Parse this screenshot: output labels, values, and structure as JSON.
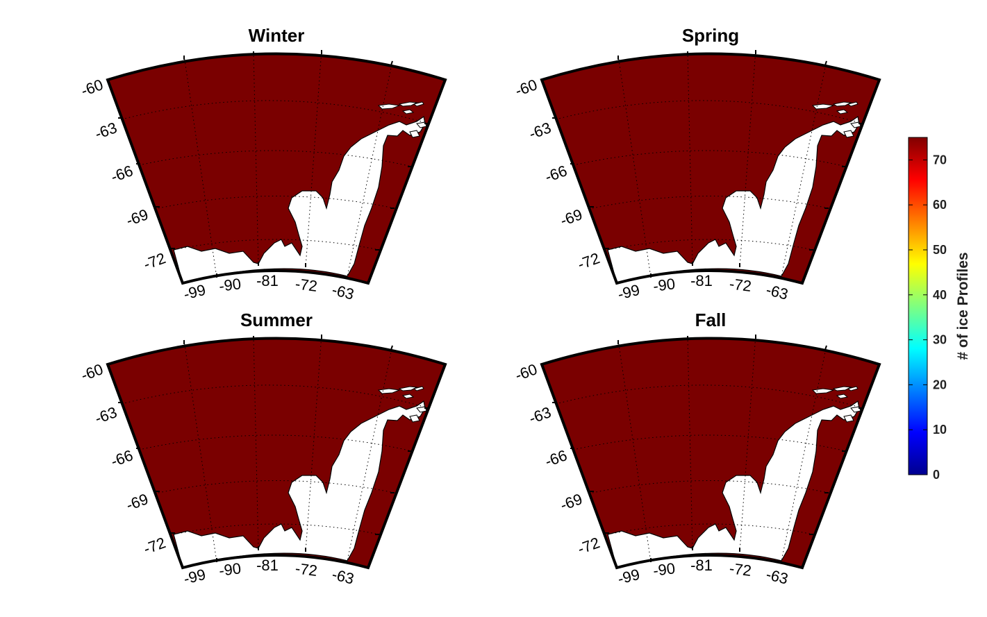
{
  "figure": {
    "panels": [
      {
        "title": "Winter"
      },
      {
        "title": "Spring"
      },
      {
        "title": "Summer"
      },
      {
        "title": "Fall"
      }
    ],
    "lat_ticks": [
      "-60",
      "-63",
      "-66",
      "-69",
      "-72"
    ],
    "lon_ticks": [
      "-99",
      "-90",
      "-81",
      "-72",
      "-63"
    ],
    "colorbar": {
      "label": "# of ice Profiles",
      "ticks": [
        "0",
        "10",
        "20",
        "30",
        "40",
        "50",
        "60",
        "70"
      ],
      "range": [
        0,
        75
      ],
      "colormap": "jet"
    },
    "colors": {
      "ocean_fill": "#7a0000",
      "land_fill": "#ffffff",
      "frame": "#000000"
    }
  }
}
